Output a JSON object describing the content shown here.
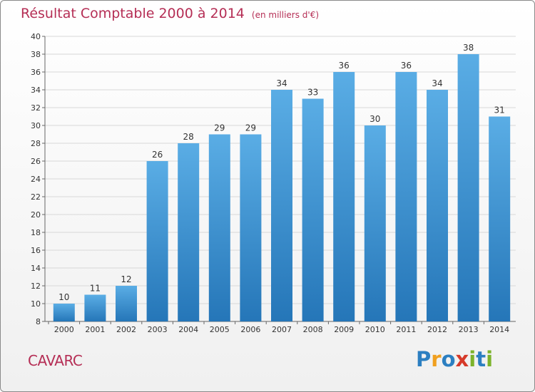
{
  "header": {
    "title": "Résultat Comptable 2000 à 2014",
    "unit": "(en milliers d'€)"
  },
  "footer": {
    "place": "CAVARC",
    "logo": "Proxiti"
  },
  "colors": {
    "title": "#b52e55",
    "bar_top": "#5aade5",
    "bar_bottom": "#2576b8",
    "grid": "#d8d8d8",
    "logo": [
      "#2c7fc1",
      "#f0a020",
      "#2c7fc1",
      "#d63a2a",
      "#7cb32b",
      "#2c7fc1",
      "#7cb32b"
    ]
  },
  "chart_data": {
    "type": "bar",
    "categories": [
      "2000",
      "2001",
      "2002",
      "2003",
      "2004",
      "2005",
      "2006",
      "2007",
      "2008",
      "2009",
      "2010",
      "2011",
      "2012",
      "2013",
      "2014"
    ],
    "values": [
      10,
      11,
      12,
      26,
      28,
      29,
      29,
      34,
      33,
      36,
      30,
      36,
      34,
      38,
      31
    ],
    "title": "Résultat Comptable 2000 à 2014",
    "xlabel": "",
    "ylabel": "",
    "ylim": [
      8,
      40
    ],
    "yticks": [
      8,
      10,
      12,
      14,
      16,
      18,
      20,
      22,
      24,
      26,
      28,
      30,
      32,
      34,
      36,
      38,
      40
    ],
    "grid": true,
    "legend": "none"
  }
}
